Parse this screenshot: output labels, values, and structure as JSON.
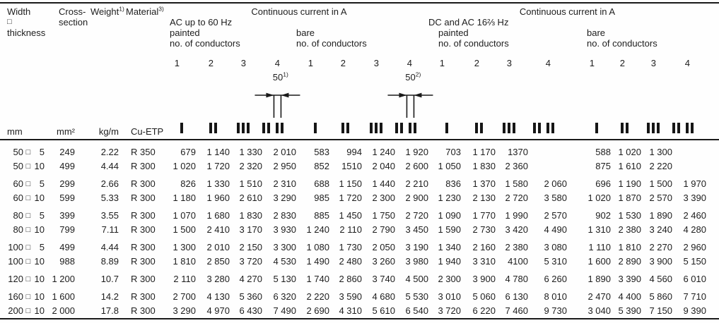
{
  "header": {
    "size": {
      "line1": "Width",
      "separator": "□",
      "line3": "thickness"
    },
    "cross": {
      "line1": "Cross-",
      "line2": "section"
    },
    "weight": {
      "text": "Weight",
      "sup": "1)"
    },
    "material": {
      "text": "Material",
      "sup": "3)"
    },
    "ac": {
      "title": "Continuous current in A",
      "subtitle": "AC up to 60 Hz",
      "painted": "painted",
      "bare": "bare",
      "conductors": "no. of conductors"
    },
    "dc": {
      "title": "Continuous current in A",
      "subtitle": "DC and AC 16⅔ Hz",
      "painted": "painted",
      "bare": "bare",
      "conductors": "no. of conductors"
    },
    "conductor_numbers": [
      "1",
      "2",
      "3",
      "4"
    ]
  },
  "diagram": {
    "ac_painted_dim": {
      "text": "50",
      "sup": "1)"
    },
    "ac_bare_dim": {
      "text": "50",
      "sup": "2)"
    }
  },
  "units": {
    "size": "mm",
    "cross": "mm²",
    "weight": "kg/m",
    "material": "Cu-ETP"
  },
  "rows": [
    {
      "width": "50",
      "thickness": "5",
      "cross": "249",
      "weight": "2.22",
      "material": "R 350",
      "group_start": false,
      "ac_painted": [
        "679",
        "1 140",
        "1 330",
        "2 010"
      ],
      "ac_bare": [
        "583",
        "994",
        "1 240",
        "1 920"
      ],
      "dc_painted": [
        "703",
        "1 170",
        "1370",
        ""
      ],
      "dc_bare": [
        "588",
        "1 020",
        "1 300",
        ""
      ]
    },
    {
      "width": "50",
      "thickness": "10",
      "cross": "499",
      "weight": "4.44",
      "material": "R 300",
      "group_start": false,
      "ac_painted": [
        "1 020",
        "1 720",
        "2 320",
        "2 950"
      ],
      "ac_bare": [
        "852",
        "1510",
        "2 040",
        "2 600"
      ],
      "dc_painted": [
        "1 050",
        "1 830",
        "2 360",
        ""
      ],
      "dc_bare": [
        "875",
        "1 610",
        "2 220",
        ""
      ]
    },
    {
      "width": "60",
      "thickness": "5",
      "cross": "299",
      "weight": "2.66",
      "material": "R 300",
      "group_start": true,
      "ac_painted": [
        "826",
        "1 330",
        "1 510",
        "2 310"
      ],
      "ac_bare": [
        "688",
        "1 150",
        "1 440",
        "2 210"
      ],
      "dc_painted": [
        "836",
        "1 370",
        "1 580",
        "2 060"
      ],
      "dc_bare": [
        "696",
        "1 190",
        "1 500",
        "1 970"
      ]
    },
    {
      "width": "60",
      "thickness": "10",
      "cross": "599",
      "weight": "5.33",
      "material": "R 300",
      "group_start": false,
      "ac_painted": [
        "1 180",
        "1 960",
        "2 610",
        "3 290"
      ],
      "ac_bare": [
        "985",
        "1 720",
        "2 300",
        "2 900"
      ],
      "dc_painted": [
        "1 230",
        "2 130",
        "2 720",
        "3 580"
      ],
      "dc_bare": [
        "1 020",
        "1 870",
        "2 570",
        "3 390"
      ]
    },
    {
      "width": "80",
      "thickness": "5",
      "cross": "399",
      "weight": "3.55",
      "material": "R 300",
      "group_start": true,
      "ac_painted": [
        "1 070",
        "1 680",
        "1 830",
        "2 830"
      ],
      "ac_bare": [
        "885",
        "1 450",
        "1 750",
        "2 720"
      ],
      "dc_painted": [
        "1 090",
        "1 770",
        "1 990",
        "2 570"
      ],
      "dc_bare": [
        "902",
        "1 530",
        "1 890",
        "2 460"
      ]
    },
    {
      "width": "80",
      "thickness": "10",
      "cross": "799",
      "weight": "7.11",
      "material": "R 300",
      "group_start": false,
      "ac_painted": [
        "1 500",
        "2 410",
        "3 170",
        "3 930"
      ],
      "ac_bare": [
        "1 240",
        "2 110",
        "2 790",
        "3 450"
      ],
      "dc_painted": [
        "1 590",
        "2 730",
        "3 420",
        "4 490"
      ],
      "dc_bare": [
        "1 310",
        "2 380",
        "3 240",
        "4 280"
      ]
    },
    {
      "width": "100",
      "thickness": "5",
      "cross": "499",
      "weight": "4.44",
      "material": "R 300",
      "group_start": true,
      "ac_painted": [
        "1 300",
        "2 010",
        "2 150",
        "3 300"
      ],
      "ac_bare": [
        "1 080",
        "1 730",
        "2 050",
        "3 190"
      ],
      "dc_painted": [
        "1 340",
        "2 160",
        "2 380",
        "3 080"
      ],
      "dc_bare": [
        "1 110",
        "1 810",
        "2 270",
        "2 960"
      ]
    },
    {
      "width": "100",
      "thickness": "10",
      "cross": "988",
      "weight": "8.89",
      "material": "R 300",
      "group_start": false,
      "ac_painted": [
        "1 810",
        "2 850",
        "3 720",
        "4 530"
      ],
      "ac_bare": [
        "1 490",
        "2 480",
        "3 260",
        "3 980"
      ],
      "dc_painted": [
        "1 940",
        "3 310",
        "4100",
        "5 310"
      ],
      "dc_bare": [
        "1 600",
        "2 890",
        "3 900",
        "5 150"
      ]
    },
    {
      "width": "120",
      "thickness": "10",
      "cross": "1 200",
      "weight": "10.7",
      "material": "R 300",
      "group_start": true,
      "ac_painted": [
        "2 110",
        "3 280",
        "4 270",
        "5 130"
      ],
      "ac_bare": [
        "1 740",
        "2 860",
        "3 740",
        "4 500"
      ],
      "dc_painted": [
        "2 300",
        "3 900",
        "4 780",
        "6 260"
      ],
      "dc_bare": [
        "1 890",
        "3 390",
        "4 560",
        "6 010"
      ]
    },
    {
      "width": "160",
      "thickness": "10",
      "cross": "1 600",
      "weight": "14.2",
      "material": "R 300",
      "group_start": true,
      "ac_painted": [
        "2 700",
        "4 130",
        "5 360",
        "6 320"
      ],
      "ac_bare": [
        "2 220",
        "3 590",
        "4 680",
        "5 530"
      ],
      "dc_painted": [
        "3 010",
        "5 060",
        "6 130",
        "8 010"
      ],
      "dc_bare": [
        "2 470",
        "4 400",
        "5 860",
        "7 710"
      ]
    },
    {
      "width": "200",
      "thickness": "10",
      "cross": "2 000",
      "weight": "17.8",
      "material": "R 300",
      "group_start": false,
      "ac_painted": [
        "3 290",
        "4 970",
        "6 430",
        "7 490"
      ],
      "ac_bare": [
        "2 690",
        "4 310",
        "5 610",
        "6 540"
      ],
      "dc_painted": [
        "3 720",
        "6 220",
        "7 460",
        "9 730"
      ],
      "dc_bare": [
        "3 040",
        "5 390",
        "7 150",
        "9 390"
      ]
    }
  ]
}
